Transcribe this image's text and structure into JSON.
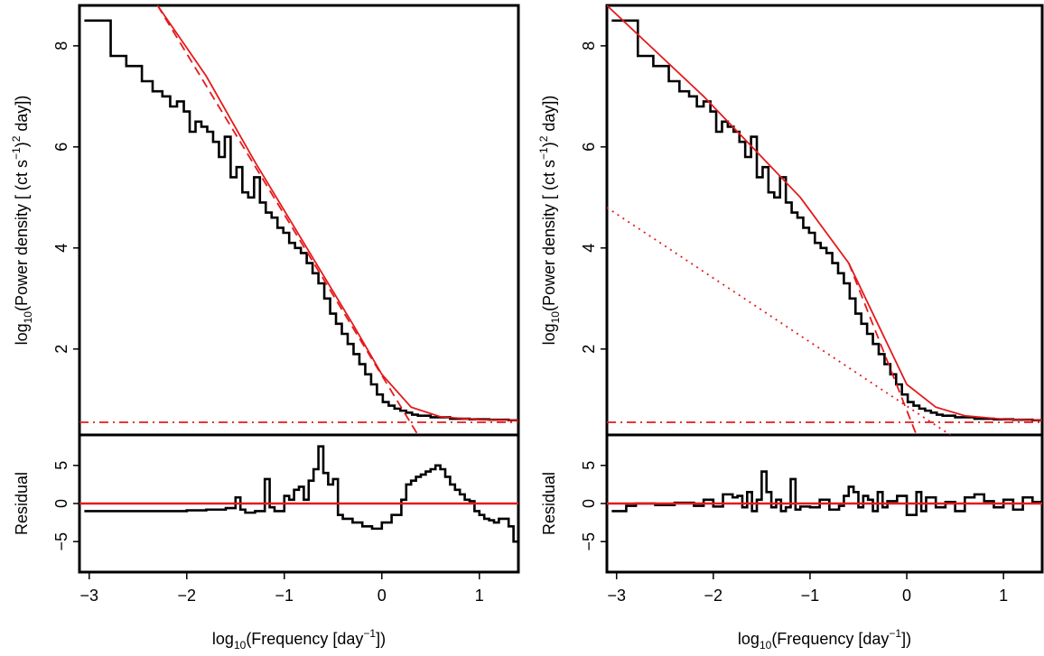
{
  "colors": {
    "data": "#000000",
    "model": "#e41a1c",
    "frame": "#000000"
  },
  "labels": {
    "y_main_log": "log",
    "y_main_sub": "10",
    "y_main_rest": "(Power density [ (ct s",
    "y_main_sup1": "−1",
    "y_main_mid": ")",
    "y_main_sup2": "2",
    "y_main_end": " day])",
    "y_resid": "Residual",
    "x_log": "log",
    "x_sub": "10",
    "x_rest": "(Frequency [day",
    "x_sup": "−1",
    "x_end": "])"
  },
  "chart_data": [
    {
      "type": "line",
      "panel": "left-top",
      "xlim": [
        -3.1,
        1.4
      ],
      "ylim": [
        0.3,
        8.8
      ],
      "yticks": [
        "2",
        "4",
        "6",
        "8"
      ],
      "series": [
        {
          "style": "step",
          "x": [
            -3.05,
            -2.78,
            -2.62,
            -2.46,
            -2.35,
            -2.25,
            -2.17,
            -2.1,
            -2.03,
            -1.97,
            -1.91,
            -1.85,
            -1.79,
            -1.73,
            -1.67,
            -1.61,
            -1.55,
            -1.49,
            -1.43,
            -1.37,
            -1.31,
            -1.25,
            -1.19,
            -1.13,
            -1.07,
            -1.01,
            -0.95,
            -0.89,
            -0.83,
            -0.77,
            -0.71,
            -0.65,
            -0.59,
            -0.53,
            -0.47,
            -0.41,
            -0.35,
            -0.29,
            -0.23,
            -0.17,
            -0.11,
            -0.05,
            0.01,
            0.07,
            0.13,
            0.19,
            0.25,
            0.31,
            0.37,
            0.5,
            0.7,
            0.9,
            1.1,
            1.3,
            1.4
          ],
          "y": [
            8.5,
            7.8,
            7.6,
            7.3,
            7.1,
            7.0,
            6.8,
            6.9,
            6.7,
            6.3,
            6.5,
            6.4,
            6.3,
            6.1,
            5.8,
            6.2,
            5.4,
            5.6,
            5.1,
            5.0,
            5.4,
            4.9,
            4.7,
            4.6,
            4.4,
            4.3,
            4.1,
            4.0,
            3.9,
            3.7,
            3.5,
            3.3,
            3.0,
            2.7,
            2.5,
            2.3,
            2.1,
            1.9,
            1.7,
            1.5,
            1.3,
            1.1,
            0.95,
            0.88,
            0.82,
            0.78,
            0.74,
            0.7,
            0.68,
            0.65,
            0.62,
            0.61,
            0.6,
            0.59,
            0.59
          ]
        },
        {
          "style": "solid",
          "x": [
            -2.3,
            -1.8,
            -1.3,
            -0.8,
            -0.3,
            0.0,
            0.3,
            0.6,
            1.0,
            1.4
          ],
          "y": [
            8.8,
            7.4,
            5.7,
            4.1,
            2.5,
            1.5,
            0.85,
            0.66,
            0.6,
            0.59
          ]
        },
        {
          "style": "dashed",
          "x": [
            -2.3,
            0.37
          ],
          "y": [
            8.8,
            0.3
          ]
        },
        {
          "style": "dashdot",
          "x": [
            -3.1,
            1.4
          ],
          "y": [
            0.55,
            0.55
          ]
        }
      ]
    },
    {
      "type": "line",
      "panel": "left-bottom",
      "xlim": [
        -3.1,
        1.4
      ],
      "ylim": [
        -9,
        9
      ],
      "yticks": [
        "-5",
        "0",
        "5"
      ],
      "xticks": [
        "−3",
        "−2",
        "−1",
        "0",
        "1"
      ],
      "series": [
        {
          "style": "step",
          "x": [
            -3.05,
            -2.5,
            -2.0,
            -1.8,
            -1.6,
            -1.5,
            -1.45,
            -1.4,
            -1.3,
            -1.2,
            -1.15,
            -1.1,
            -1.0,
            -0.95,
            -0.9,
            -0.85,
            -0.8,
            -0.75,
            -0.7,
            -0.65,
            -0.6,
            -0.55,
            -0.5,
            -0.45,
            -0.4,
            -0.3,
            -0.2,
            -0.1,
            0.0,
            0.1,
            0.2,
            0.25,
            0.3,
            0.35,
            0.4,
            0.45,
            0.5,
            0.55,
            0.6,
            0.65,
            0.7,
            0.75,
            0.8,
            0.85,
            0.9,
            0.95,
            1.0,
            1.05,
            1.1,
            1.15,
            1.2,
            1.3,
            1.35,
            1.4
          ],
          "y": [
            -1.0,
            -1.0,
            -0.9,
            -0.8,
            -0.6,
            0.8,
            -0.8,
            -1.2,
            -1.0,
            3.2,
            -0.5,
            -1.0,
            1.0,
            0.5,
            1.8,
            2.2,
            0.5,
            3.0,
            4.5,
            7.5,
            4.0,
            2.5,
            3.2,
            -1.5,
            -2.0,
            -2.5,
            -3.0,
            -3.3,
            -2.5,
            -1.5,
            0.5,
            2.5,
            3.0,
            3.5,
            3.8,
            4.2,
            4.5,
            5.0,
            4.5,
            3.5,
            2.5,
            1.8,
            1.2,
            0.5,
            0.3,
            -1.0,
            -1.5,
            -2.0,
            -2.2,
            -2.5,
            -2.0,
            -3.0,
            -5.0,
            -5.0
          ]
        },
        {
          "style": "solid",
          "x": [
            -3.1,
            1.4
          ],
          "y": [
            0,
            0
          ]
        }
      ]
    },
    {
      "type": "line",
      "panel": "right-top",
      "xlim": [
        -3.1,
        1.4
      ],
      "ylim": [
        0.3,
        8.8
      ],
      "yticks": [
        "2",
        "4",
        "6",
        "8"
      ],
      "series": [
        {
          "style": "step",
          "x": [
            -3.05,
            -2.78,
            -2.62,
            -2.46,
            -2.35,
            -2.25,
            -2.17,
            -2.1,
            -2.03,
            -1.97,
            -1.91,
            -1.85,
            -1.79,
            -1.73,
            -1.67,
            -1.61,
            -1.55,
            -1.49,
            -1.43,
            -1.37,
            -1.31,
            -1.25,
            -1.19,
            -1.13,
            -1.07,
            -1.01,
            -0.95,
            -0.89,
            -0.83,
            -0.77,
            -0.71,
            -0.65,
            -0.59,
            -0.53,
            -0.47,
            -0.41,
            -0.35,
            -0.29,
            -0.23,
            -0.17,
            -0.11,
            -0.05,
            0.01,
            0.07,
            0.13,
            0.19,
            0.25,
            0.31,
            0.37,
            0.5,
            0.7,
            0.9,
            1.1,
            1.3,
            1.4
          ],
          "y": [
            8.5,
            7.8,
            7.6,
            7.3,
            7.1,
            7.0,
            6.8,
            6.9,
            6.7,
            6.3,
            6.5,
            6.4,
            6.3,
            6.1,
            5.8,
            6.2,
            5.4,
            5.6,
            5.1,
            5.0,
            5.4,
            4.9,
            4.7,
            4.6,
            4.4,
            4.3,
            4.1,
            4.0,
            3.9,
            3.7,
            3.5,
            3.3,
            3.0,
            2.7,
            2.5,
            2.3,
            2.1,
            1.9,
            1.7,
            1.5,
            1.3,
            1.1,
            0.95,
            0.88,
            0.82,
            0.78,
            0.74,
            0.7,
            0.68,
            0.65,
            0.62,
            0.61,
            0.6,
            0.59,
            0.59
          ]
        },
        {
          "style": "solid",
          "x": [
            -3.1,
            -2.6,
            -2.1,
            -1.6,
            -1.1,
            -0.6,
            -0.3,
            0.0,
            0.3,
            0.6,
            1.0,
            1.4
          ],
          "y": [
            8.8,
            7.9,
            7.0,
            6.0,
            5.0,
            3.7,
            2.5,
            1.3,
            0.85,
            0.68,
            0.61,
            0.59
          ]
        },
        {
          "style": "dashed",
          "x": [
            -0.6,
            0.1
          ],
          "y": [
            3.7,
            0.3
          ]
        },
        {
          "style": "dotted",
          "x": [
            -3.1,
            0.45
          ],
          "y": [
            4.8,
            0.3
          ]
        },
        {
          "style": "dashdot",
          "x": [
            -3.1,
            1.4
          ],
          "y": [
            0.55,
            0.55
          ]
        }
      ]
    },
    {
      "type": "line",
      "panel": "right-bottom",
      "xlim": [
        -3.1,
        1.4
      ],
      "ylim": [
        -9,
        9
      ],
      "yticks": [
        "-5",
        "0",
        "5"
      ],
      "xticks": [
        "−3",
        "−2",
        "−1",
        "0",
        "1"
      ],
      "series": [
        {
          "style": "step",
          "x": [
            -3.05,
            -2.9,
            -2.8,
            -2.6,
            -2.4,
            -2.2,
            -2.1,
            -2.0,
            -1.9,
            -1.8,
            -1.75,
            -1.7,
            -1.65,
            -1.6,
            -1.55,
            -1.5,
            -1.45,
            -1.4,
            -1.35,
            -1.3,
            -1.25,
            -1.2,
            -1.15,
            -1.1,
            -1.0,
            -0.9,
            -0.8,
            -0.7,
            -0.65,
            -0.6,
            -0.55,
            -0.5,
            -0.45,
            -0.4,
            -0.35,
            -0.3,
            -0.25,
            -0.2,
            -0.1,
            0.0,
            0.1,
            0.15,
            0.2,
            0.3,
            0.4,
            0.5,
            0.6,
            0.7,
            0.8,
            0.9,
            1.0,
            1.1,
            1.2,
            1.3,
            1.4
          ],
          "y": [
            -1.0,
            -0.3,
            0.0,
            -0.2,
            0.1,
            -0.3,
            0.5,
            -0.4,
            1.2,
            0.8,
            1.0,
            -0.5,
            1.5,
            -1.0,
            0.5,
            4.2,
            1.5,
            -0.5,
            0.5,
            -1.0,
            -0.5,
            3.2,
            -0.8,
            -0.4,
            -0.5,
            0.5,
            -0.8,
            -0.3,
            1.0,
            2.2,
            1.5,
            -0.5,
            1.0,
            0.5,
            -1.0,
            1.5,
            -0.5,
            0.3,
            1.0,
            -1.5,
            1.5,
            -1.0,
            0.8,
            -0.5,
            0.2,
            -1.0,
            0.8,
            1.2,
            0.3,
            -0.5,
            0.5,
            -0.8,
            0.8,
            0.2,
            0.8
          ]
        },
        {
          "style": "solid",
          "x": [
            -3.1,
            1.4
          ],
          "y": [
            0,
            0
          ]
        }
      ]
    }
  ]
}
